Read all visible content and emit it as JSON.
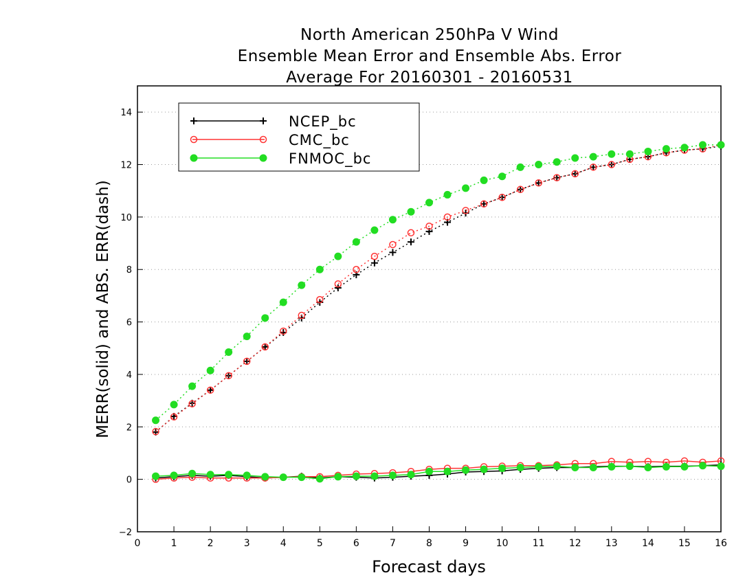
{
  "chart_data": {
    "type": "line",
    "title": [
      "North American 250hPa V Wind",
      "Ensemble Mean Error and Ensemble Abs. Error",
      "Average For 20160301 - 20160531"
    ],
    "xlabel": "Forecast days",
    "ylabel": "MERR(solid) and ABS. ERR(dash)",
    "xlim": [
      0,
      16
    ],
    "ylim": [
      -2,
      15
    ],
    "xticks": [
      0,
      1,
      2,
      3,
      4,
      5,
      6,
      7,
      8,
      9,
      10,
      11,
      12,
      13,
      14,
      15,
      16
    ],
    "yticks": [
      -2,
      0,
      2,
      4,
      6,
      8,
      10,
      12,
      14
    ],
    "grid": "horizontal dotted",
    "legend_position": "top-left",
    "x": [
      0.5,
      1,
      1.5,
      2,
      2.5,
      3,
      3.5,
      4,
      4.5,
      5,
      5.5,
      6,
      6.5,
      7,
      7.5,
      8,
      8.5,
      9,
      9.5,
      10,
      10.5,
      11,
      11.5,
      12,
      12.5,
      13,
      13.5,
      14,
      14.5,
      15,
      15.5,
      16
    ],
    "series": [
      {
        "name": "NCEP_bc",
        "color": "#000000",
        "marker": "plus",
        "merr": [
          0.05,
          0.1,
          0.15,
          0.12,
          0.15,
          0.1,
          0.05,
          0.08,
          0.12,
          0.05,
          0.1,
          0.08,
          0.05,
          0.08,
          0.12,
          0.15,
          0.2,
          0.28,
          0.3,
          0.32,
          0.38,
          0.42,
          0.45,
          0.45,
          0.48,
          0.5,
          0.5,
          0.48,
          0.5,
          0.5,
          0.52,
          0.55
        ],
        "abs_err": [
          1.8,
          2.4,
          2.9,
          3.4,
          3.95,
          4.5,
          5.05,
          5.6,
          6.15,
          6.75,
          7.3,
          7.8,
          8.25,
          8.65,
          9.05,
          9.45,
          9.8,
          10.15,
          10.5,
          10.75,
          11.05,
          11.3,
          11.5,
          11.65,
          11.9,
          12.0,
          12.2,
          12.3,
          12.45,
          12.55,
          12.6,
          12.7
        ]
      },
      {
        "name": "CMC_bc",
        "color": "#ff3333",
        "marker": "open-circle",
        "merr": [
          0.0,
          0.05,
          0.08,
          0.05,
          0.05,
          0.05,
          0.05,
          0.08,
          0.1,
          0.1,
          0.15,
          0.2,
          0.22,
          0.25,
          0.3,
          0.38,
          0.42,
          0.42,
          0.48,
          0.5,
          0.52,
          0.52,
          0.55,
          0.6,
          0.6,
          0.68,
          0.65,
          0.68,
          0.65,
          0.7,
          0.65,
          0.7
        ],
        "abs_err": [
          1.82,
          2.38,
          2.88,
          3.4,
          3.95,
          4.5,
          5.05,
          5.65,
          6.25,
          6.85,
          7.45,
          8.0,
          8.5,
          8.95,
          9.4,
          9.65,
          10.0,
          10.25,
          10.5,
          10.75,
          11.05,
          11.3,
          11.5,
          11.65,
          11.9,
          12.0,
          12.2,
          12.3,
          12.45,
          12.55,
          12.6,
          12.75
        ]
      },
      {
        "name": "FNMOC_bc",
        "color": "#22dd22",
        "marker": "filled-circle",
        "merr": [
          0.12,
          0.15,
          0.22,
          0.18,
          0.18,
          0.15,
          0.1,
          0.08,
          0.08,
          0.02,
          0.1,
          0.12,
          0.12,
          0.15,
          0.18,
          0.3,
          0.3,
          0.35,
          0.38,
          0.42,
          0.45,
          0.48,
          0.5,
          0.45,
          0.45,
          0.48,
          0.5,
          0.45,
          0.48,
          0.48,
          0.52,
          0.5
        ],
        "abs_err": [
          2.25,
          2.85,
          3.55,
          4.15,
          4.85,
          5.45,
          6.15,
          6.75,
          7.4,
          8.0,
          8.5,
          9.05,
          9.5,
          9.9,
          10.2,
          10.55,
          10.85,
          11.1,
          11.4,
          11.55,
          11.9,
          12.0,
          12.1,
          12.25,
          12.3,
          12.4,
          12.4,
          12.5,
          12.6,
          12.65,
          12.75,
          12.75
        ]
      }
    ]
  }
}
